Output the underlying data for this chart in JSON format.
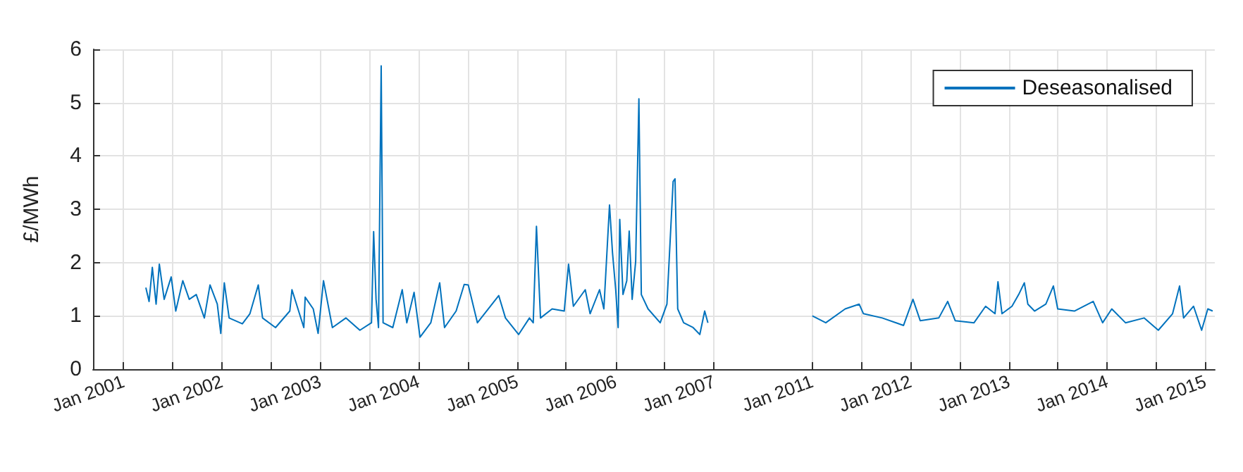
{
  "chart_data": [
    {
      "type": "line",
      "ylabel": "£/MWh",
      "grid": true,
      "marker": "none",
      "line_style": "solid",
      "xlim": [
        "2000-09-10",
        "2007-03-01"
      ],
      "ylim": [
        0,
        6
      ],
      "yticks": [
        0,
        1,
        2,
        3,
        4,
        5,
        6
      ],
      "xticks": [
        {
          "value": "2001-01-01",
          "label": "Jan 2001"
        },
        {
          "value": "2001-07-01",
          "label": null
        },
        {
          "value": "2002-01-01",
          "label": "Jan 2002"
        },
        {
          "value": "2002-07-01",
          "label": null
        },
        {
          "value": "2003-01-01",
          "label": "Jan 2003"
        },
        {
          "value": "2003-07-01",
          "label": null
        },
        {
          "value": "2004-01-01",
          "label": "Jan 2004"
        },
        {
          "value": "2004-07-01",
          "label": null
        },
        {
          "value": "2005-01-01",
          "label": "Jan 2005"
        },
        {
          "value": "2005-07-01",
          "label": null
        },
        {
          "value": "2006-01-01",
          "label": "Jan 2006"
        },
        {
          "value": "2006-07-01",
          "label": null
        },
        {
          "value": "2007-01-01",
          "label": "Jan 2007"
        }
      ],
      "series": [
        {
          "color": "#0072bd",
          "x": [
            "2001-03-25",
            "2001-04-06",
            "2001-04-18",
            "2001-05-02",
            "2001-05-14",
            "2001-06-01",
            "2001-06-27",
            "2001-07-14",
            "2001-08-09",
            "2001-09-02",
            "2001-09-28",
            "2001-10-28",
            "2001-11-18",
            "2001-12-15",
            "2001-12-28",
            "2002-01-10",
            "2002-01-28",
            "2002-03-18",
            "2002-04-15",
            "2002-05-16",
            "2002-06-01",
            "2002-07-19",
            "2002-09-10",
            "2002-09-18",
            "2002-11-01",
            "2002-11-06",
            "2002-12-06",
            "2002-12-24",
            "2003-01-13",
            "2003-02-15",
            "2003-04-06",
            "2003-05-28",
            "2003-07-10",
            "2003-07-18",
            "2003-07-27",
            "2003-08-05",
            "2003-08-15",
            "2003-08-22",
            "2003-09-27",
            "2003-11-01",
            "2003-11-18",
            "2003-12-15",
            "2004-01-06",
            "2004-02-15",
            "2004-03-19",
            "2004-04-06",
            "2004-05-19",
            "2004-06-18",
            "2004-07-03",
            "2004-08-06",
            "2004-10-24",
            "2004-11-18",
            "2005-01-06",
            "2005-02-15",
            "2005-03-01",
            "2005-03-13",
            "2005-03-28",
            "2005-05-10",
            "2005-06-24",
            "2005-07-10",
            "2005-07-28",
            "2005-09-10",
            "2005-09-28",
            "2005-11-02",
            "2005-11-18",
            "2005-12-09",
            "2005-12-20",
            "2006-01-01",
            "2006-01-10",
            "2006-01-16",
            "2006-01-28",
            "2006-02-11",
            "2006-02-20",
            "2006-03-03",
            "2006-03-16",
            "2006-03-28",
            "2006-04-06",
            "2006-05-01",
            "2006-06-15",
            "2006-07-10",
            "2006-08-02",
            "2006-08-09",
            "2006-08-19",
            "2006-09-10",
            "2006-10-15",
            "2006-11-09",
            "2006-11-27",
            "2006-12-09"
          ],
          "values": [
            1.53,
            1.27,
            1.91,
            1.22,
            1.97,
            1.31,
            1.73,
            1.09,
            1.66,
            1.31,
            1.4,
            0.96,
            1.58,
            1.22,
            0.67,
            1.62,
            0.96,
            0.85,
            1.04,
            1.58,
            0.96,
            0.78,
            1.09,
            1.49,
            0.78,
            1.35,
            1.13,
            0.67,
            1.66,
            0.78,
            0.96,
            0.73,
            0.87,
            2.58,
            1.31,
            0.78,
            5.69,
            0.87,
            0.78,
            1.49,
            0.87,
            1.44,
            0.6,
            0.87,
            1.62,
            0.78,
            1.09,
            1.59,
            1.58,
            0.87,
            1.38,
            0.96,
            0.65,
            0.96,
            0.87,
            2.68,
            0.96,
            1.13,
            1.09,
            1.97,
            1.18,
            1.49,
            1.04,
            1.49,
            1.13,
            3.08,
            2.19,
            1.49,
            0.78,
            2.81,
            1.4,
            1.66,
            2.59,
            1.31,
            2.02,
            5.07,
            1.4,
            1.13,
            0.87,
            1.22,
            3.52,
            3.57,
            1.13,
            0.87,
            0.78,
            0.65,
            1.09,
            0.87
          ]
        }
      ]
    },
    {
      "type": "line",
      "legend": "top right",
      "grid": true,
      "marker": "none",
      "line_style": "solid",
      "tick_labels": "x",
      "xlim": [
        "2010-03-01",
        "2015-02-05"
      ],
      "ylim": [
        0,
        6
      ],
      "yticks": [
        0,
        1,
        2,
        3,
        4,
        5,
        6
      ],
      "xticks": [
        {
          "value": "2011-01-01",
          "label": "Jan 2011"
        },
        {
          "value": "2011-07-01",
          "label": null
        },
        {
          "value": "2012-01-01",
          "label": "Jan 2012"
        },
        {
          "value": "2012-07-01",
          "label": null
        },
        {
          "value": "2013-01-01",
          "label": "Jan 2013"
        },
        {
          "value": "2013-07-01",
          "label": null
        },
        {
          "value": "2014-01-01",
          "label": "Jan 2014"
        },
        {
          "value": "2014-07-01",
          "label": null
        },
        {
          "value": "2015-01-01",
          "label": "Jan 2015"
        }
      ],
      "series": [
        {
          "name": "Deseasonalised",
          "color": "#0072bd",
          "x": [
            "2011-01-01",
            "2011-02-20",
            "2011-05-03",
            "2011-06-24",
            "2011-07-10",
            "2011-09-18",
            "2011-12-06",
            "2012-01-10",
            "2012-02-06",
            "2012-04-15",
            "2012-05-18",
            "2012-06-15",
            "2012-08-24",
            "2012-10-06",
            "2012-11-10",
            "2012-11-21",
            "2012-12-06",
            "2013-01-12",
            "2013-02-06",
            "2013-02-27",
            "2013-03-12",
            "2013-04-06",
            "2013-05-18",
            "2013-06-15",
            "2013-07-01",
            "2013-09-01",
            "2013-11-10",
            "2013-12-15",
            "2014-01-18",
            "2014-03-10",
            "2014-05-18",
            "2014-07-10",
            "2014-09-01",
            "2014-09-27",
            "2014-10-12",
            "2014-11-18",
            "2014-12-18",
            "2015-01-10",
            "2015-01-28"
          ],
          "values": [
            1.0,
            0.87,
            1.13,
            1.22,
            1.04,
            0.96,
            0.82,
            1.31,
            0.91,
            0.96,
            1.27,
            0.91,
            0.87,
            1.18,
            1.04,
            1.64,
            1.04,
            1.18,
            1.4,
            1.62,
            1.22,
            1.09,
            1.22,
            1.56,
            1.13,
            1.09,
            1.27,
            0.87,
            1.13,
            0.87,
            0.96,
            0.73,
            1.04,
            1.56,
            0.96,
            1.18,
            0.73,
            1.13,
            1.09
          ]
        }
      ]
    }
  ]
}
